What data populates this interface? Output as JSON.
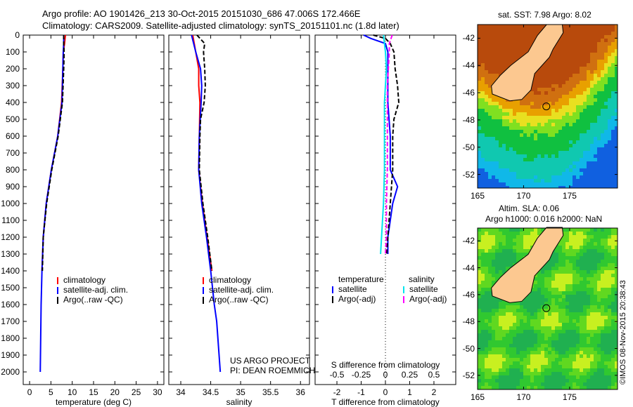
{
  "title_line1": "Argo profile: AO 1901426_213 30-Oct-2015 20151030_686 47.006S 172.466E",
  "title_line2": "Climatology: CARS2009. Satellite-adjusted climatology: synTS_20151101.nc (1.8d later)",
  "colors": {
    "climatology": "#ff0000",
    "satellite": "#0000ff",
    "argo": "#000000",
    "sal_satellite": "#00e5ee",
    "sal_argo": "#ff00ff",
    "land": "#fcc890"
  },
  "depth_ticks": [
    "0",
    "100",
    "200",
    "300",
    "400",
    "500",
    "600",
    "700",
    "800",
    "900",
    "1000",
    "1100",
    "1200",
    "1300",
    "1400",
    "1500",
    "1600",
    "1700",
    "1800",
    "1900",
    "2000"
  ],
  "chart_data": [
    {
      "type": "line",
      "xlabel": "temperature (deg C)",
      "xlim": [
        -1.5,
        31.5
      ],
      "ylim": [
        2075,
        0
      ],
      "ylabel": "depth",
      "xticks": [
        "0",
        "5",
        "10",
        "15",
        "20",
        "25",
        "30"
      ],
      "legend": [
        "climatology",
        "satellite-adj. clim.",
        "Argo(..raw -QC)"
      ],
      "series": [
        {
          "name": "climatology",
          "depth": [
            0,
            50,
            100,
            200,
            400,
            600,
            800,
            1000,
            1200,
            1400
          ],
          "values": [
            8.4,
            8.2,
            7.9,
            7.8,
            7.5,
            6.6,
            5.1,
            3.9,
            3.2,
            2.9
          ]
        },
        {
          "name": "satellite-adj. clim.",
          "depth": [
            0,
            50,
            100,
            200,
            400,
            600,
            800,
            1000,
            1200,
            1400,
            1600,
            1800,
            2000
          ],
          "values": [
            8.0,
            8.0,
            7.9,
            7.8,
            7.6,
            6.6,
            5.1,
            3.9,
            3.2,
            2.9,
            2.7,
            2.6,
            2.5
          ]
        },
        {
          "name": "Argo(..raw -QC)",
          "depth": [
            0,
            50,
            100,
            200,
            400,
            600,
            800,
            1000,
            1200,
            1400
          ],
          "values": [
            8.0,
            8.0,
            8.1,
            8.0,
            7.7,
            6.7,
            5.2,
            4.0,
            3.2,
            3.0
          ]
        }
      ]
    },
    {
      "type": "line",
      "xlabel": "salinity",
      "xlim": [
        33.8,
        36.15
      ],
      "ylim": [
        2075,
        0
      ],
      "xticks": [
        "34",
        "34.5",
        "35",
        "35.5",
        "36"
      ],
      "legend": [
        "climatology",
        "satellite-adj. clim.",
        "Argo(..raw -QC)"
      ],
      "annotation": [
        "US ARGO PROJECT",
        "PI: DEAN ROEMMICH"
      ],
      "series": [
        {
          "name": "climatology",
          "depth": [
            0,
            100,
            200,
            300,
            400,
            600,
            800,
            1000,
            1200,
            1400
          ],
          "values": [
            34.2,
            34.25,
            34.3,
            34.3,
            34.32,
            34.31,
            34.3,
            34.36,
            34.44,
            34.52
          ]
        },
        {
          "name": "satellite-adj. clim.",
          "depth": [
            0,
            100,
            200,
            300,
            400,
            600,
            800,
            1000,
            1200,
            1400,
            1600,
            1700,
            1800,
            2000
          ],
          "values": [
            34.18,
            34.25,
            34.33,
            34.35,
            34.34,
            34.31,
            34.3,
            34.35,
            34.43,
            34.5,
            34.56,
            34.6,
            34.62,
            34.66
          ]
        },
        {
          "name": "Argo(..raw -QC)",
          "depth": [
            0,
            50,
            100,
            200,
            300,
            400,
            500,
            600,
            800,
            1000,
            1200,
            1400
          ],
          "values": [
            34.27,
            34.4,
            34.38,
            34.4,
            34.41,
            34.39,
            34.33,
            34.32,
            34.31,
            34.37,
            34.45,
            34.52
          ]
        }
      ]
    },
    {
      "type": "line",
      "xlabel": "T difference from climatology",
      "xlabel2": "S difference from climatology",
      "xlim": [
        -2.9,
        2.9
      ],
      "xlim_s": [
        -0.725,
        0.725
      ],
      "ylim": [
        2075,
        0
      ],
      "xticks": [
        "-2",
        "-1",
        "0",
        "1",
        "2"
      ],
      "xticks_s": [
        "-0.5",
        "-0.25",
        "0",
        "0.25",
        "0.5"
      ],
      "legend_temperature": {
        "heading": "temperature",
        "items": [
          "satellite",
          "Argo(-adj)"
        ]
      },
      "legend_salinity": {
        "heading": "salinity",
        "items": [
          "satellite",
          "Argo(-adj)"
        ]
      },
      "series": [
        {
          "name": "T satellite",
          "depth": [
            0,
            20,
            50,
            100,
            200,
            400,
            600,
            800,
            900,
            1000,
            1200,
            1300
          ],
          "values": [
            -0.9,
            -0.6,
            0.0,
            0.1,
            0.1,
            0.1,
            0.2,
            0.2,
            0.5,
            0.3,
            0.1,
            0.1
          ]
        },
        {
          "name": "T Argo(-adj)",
          "depth": [
            0,
            20,
            50,
            100,
            200,
            300,
            400,
            500,
            600,
            800,
            1000,
            1200,
            1300
          ],
          "values": [
            -0.5,
            0.0,
            0.2,
            0.35,
            0.4,
            0.5,
            0.55,
            0.35,
            0.3,
            0.3,
            0.2,
            0.1,
            0.05
          ]
        },
        {
          "name": "S satellite",
          "depth": [
            0,
            50,
            100,
            200,
            400,
            600,
            800,
            1000,
            1200,
            1300
          ],
          "values": [
            -0.02,
            -0.01,
            0.0,
            0.01,
            -0.01,
            -0.01,
            -0.01,
            -0.02,
            -0.04,
            -0.05
          ]
        },
        {
          "name": "S Argo(-adj)",
          "depth": [
            0,
            50,
            100,
            200,
            300,
            400,
            600,
            800,
            1000,
            1200,
            1300
          ],
          "values": [
            0.07,
            0.04,
            0.04,
            0.03,
            0.02,
            0.02,
            0.02,
            0.02,
            0.01,
            0.01,
            0.0
          ]
        }
      ]
    }
  ],
  "map_sst": {
    "title": "sat. SST: 7.98 Argo: 8.02",
    "lon_ticks": [
      "165",
      "170",
      "175"
    ],
    "lat_ticks": [
      "-42",
      "-44",
      "-46",
      "-48",
      "-50",
      "-52"
    ],
    "argo_lon": 172.466,
    "argo_lat": -47.006
  },
  "map_sla": {
    "title_line1": "Altim. SLA: 0.06",
    "title_line2": "Argo h1000: 0.016 h2000: NaN",
    "lon_ticks": [
      "165",
      "170",
      "175"
    ],
    "lat_ticks": [
      "-42",
      "-44",
      "-46",
      "-48",
      "-50",
      "-52"
    ]
  },
  "footer": "©IMOS 08-Nov-2015 20:38:43"
}
